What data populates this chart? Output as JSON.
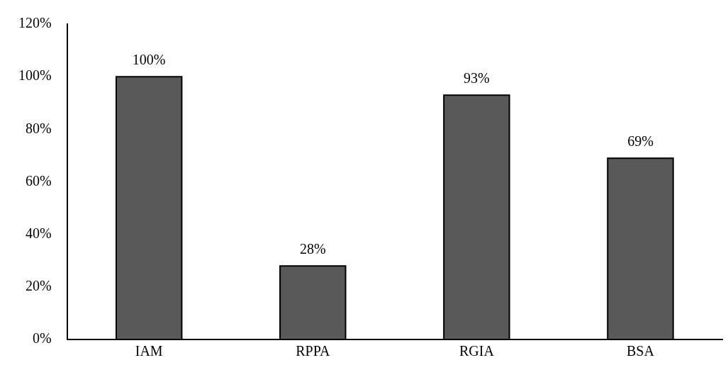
{
  "chart_data": {
    "type": "bar",
    "categories": [
      "IAM",
      "RPPA",
      "RGIA",
      "BSA"
    ],
    "values": [
      100,
      28,
      93,
      69
    ],
    "value_labels": [
      "100%",
      "28%",
      "93%",
      "69%"
    ],
    "color": "#595959",
    "ylim": [
      0,
      120
    ],
    "yticks": [
      {
        "value": 0,
        "label": "0%"
      },
      {
        "value": 20,
        "label": "20%"
      },
      {
        "value": 40,
        "label": "40%"
      },
      {
        "value": 60,
        "label": "60%"
      },
      {
        "value": 80,
        "label": "80%"
      },
      {
        "value": 100,
        "label": "100%"
      },
      {
        "value": 120,
        "label": "120%"
      }
    ],
    "grid": false,
    "legend": false
  }
}
